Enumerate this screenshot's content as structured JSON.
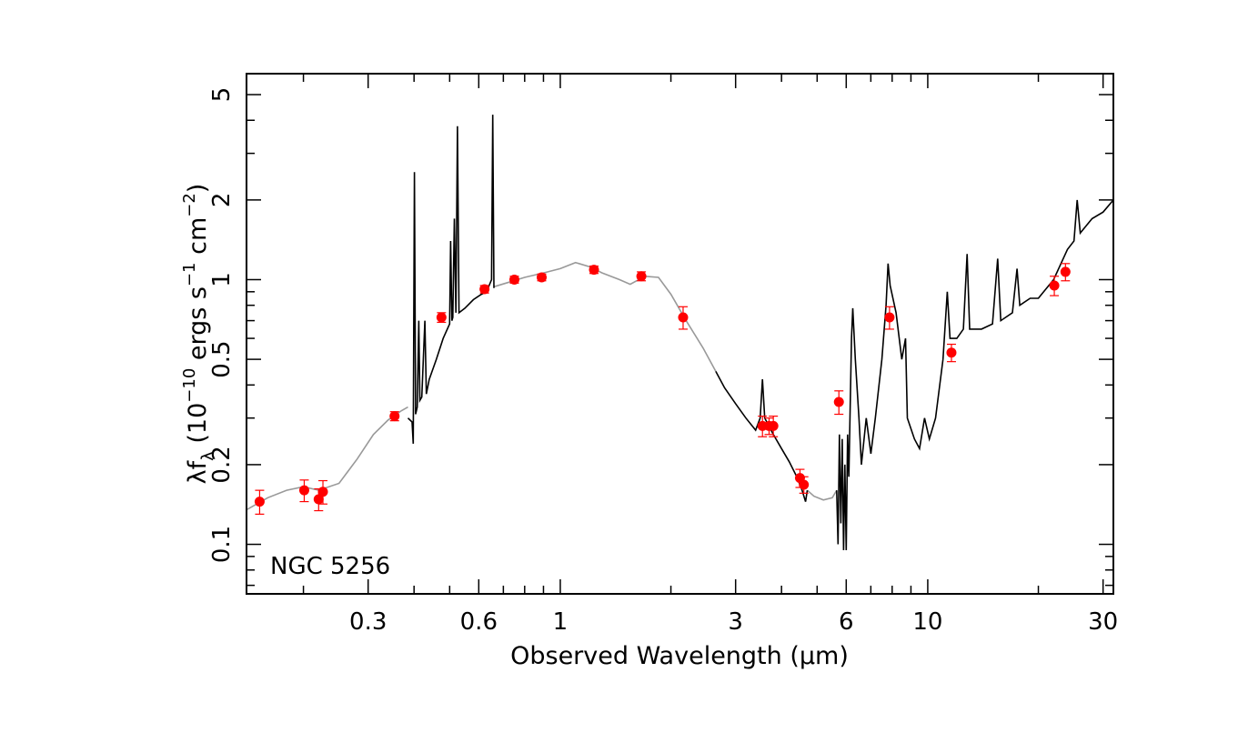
{
  "chart_data": {
    "type": "scatter",
    "xscale": "log",
    "yscale": "log",
    "xlim": [
      0.14,
      32
    ],
    "ylim": [
      0.065,
      6.0
    ],
    "xlabel": "Observed Wavelength (μm)",
    "ylabel": "λf",
    "ylabel_sub": "λ",
    "ylabel_units": " (10",
    "ylabel_exp1": "−10",
    "ylabel_mid": " ergs s",
    "ylabel_exp2": "−1",
    "ylabel_mid2": " cm",
    "ylabel_exp3": "−2",
    "ylabel_end": ")",
    "x_ticks": [
      {
        "value": 0.3,
        "label": "0.3"
      },
      {
        "value": 0.6,
        "label": "0.6"
      },
      {
        "value": 1,
        "label": "1"
      },
      {
        "value": 3,
        "label": "3"
      },
      {
        "value": 6,
        "label": "6"
      },
      {
        "value": 10,
        "label": "10"
      },
      {
        "value": 30,
        "label": "30"
      }
    ],
    "y_ticks": [
      {
        "value": 0.1,
        "label": "0.1"
      },
      {
        "value": 0.2,
        "label": "0.2"
      },
      {
        "value": 0.5,
        "label": "0.5"
      },
      {
        "value": 1,
        "label": "1"
      },
      {
        "value": 2,
        "label": "2"
      },
      {
        "value": 5,
        "label": "5"
      }
    ],
    "annotation": "NGC 5256",
    "colors": {
      "model": "#999999",
      "observed": "#000000",
      "points": "#ff0000"
    },
    "photometry": [
      {
        "x": 0.152,
        "y": 0.145,
        "err": 0.015
      },
      {
        "x": 0.201,
        "y": 0.16,
        "err": 0.015
      },
      {
        "x": 0.22,
        "y": 0.148,
        "err": 0.014
      },
      {
        "x": 0.226,
        "y": 0.158,
        "err": 0.016
      },
      {
        "x": 0.354,
        "y": 0.305,
        "err": 0.012
      },
      {
        "x": 0.475,
        "y": 0.72,
        "err": 0.03
      },
      {
        "x": 0.622,
        "y": 0.92,
        "err": 0.03
      },
      {
        "x": 0.75,
        "y": 1.0,
        "err": 0.03
      },
      {
        "x": 0.89,
        "y": 1.02,
        "err": 0.03
      },
      {
        "x": 1.235,
        "y": 1.09,
        "err": 0.035
      },
      {
        "x": 1.662,
        "y": 1.03,
        "err": 0.04
      },
      {
        "x": 2.159,
        "y": 0.72,
        "err": 0.07
      },
      {
        "x": 3.55,
        "y": 0.28,
        "err": 0.025
      },
      {
        "x": 3.7,
        "y": 0.28,
        "err": 0.02
      },
      {
        "x": 3.8,
        "y": 0.28,
        "err": 0.025
      },
      {
        "x": 4.49,
        "y": 0.178,
        "err": 0.014
      },
      {
        "x": 4.6,
        "y": 0.168,
        "err": 0.012
      },
      {
        "x": 5.73,
        "y": 0.345,
        "err": 0.035
      },
      {
        "x": 7.87,
        "y": 0.72,
        "err": 0.07
      },
      {
        "x": 11.6,
        "y": 0.53,
        "err": 0.04
      },
      {
        "x": 22.1,
        "y": 0.95,
        "err": 0.08
      },
      {
        "x": 23.7,
        "y": 1.07,
        "err": 0.08
      }
    ],
    "model_segments": [
      [
        [
          0.14,
          0.135
        ],
        [
          0.16,
          0.15
        ],
        [
          0.18,
          0.16
        ],
        [
          0.2,
          0.165
        ],
        [
          0.22,
          0.16
        ],
        [
          0.25,
          0.17
        ],
        [
          0.28,
          0.21
        ],
        [
          0.31,
          0.26
        ],
        [
          0.34,
          0.295
        ],
        [
          0.37,
          0.32
        ],
        [
          0.385,
          0.33
        ]
      ],
      [
        [
          0.66,
          0.94
        ],
        [
          0.72,
          0.975
        ],
        [
          0.8,
          1.02
        ],
        [
          0.9,
          1.06
        ],
        [
          1.0,
          1.1
        ],
        [
          1.1,
          1.16
        ],
        [
          1.2,
          1.12
        ],
        [
          1.3,
          1.06
        ],
        [
          1.45,
          1.0
        ],
        [
          1.55,
          0.96
        ],
        [
          1.7,
          1.03
        ],
        [
          1.85,
          1.02
        ],
        [
          2.0,
          0.88
        ],
        [
          2.2,
          0.7
        ],
        [
          2.45,
          0.55
        ],
        [
          2.65,
          0.45
        ]
      ],
      [
        [
          4.7,
          0.16
        ],
        [
          4.9,
          0.152
        ],
        [
          5.2,
          0.147
        ],
        [
          5.5,
          0.15
        ],
        [
          5.65,
          0.16
        ]
      ]
    ],
    "observed_segments": [
      [
        [
          0.385,
          0.3
        ],
        [
          0.395,
          0.29
        ],
        [
          0.398,
          0.24
        ],
        [
          0.401,
          2.55
        ],
        [
          0.404,
          0.31
        ],
        [
          0.408,
          0.33
        ],
        [
          0.412,
          0.7
        ],
        [
          0.415,
          0.35
        ],
        [
          0.42,
          0.36
        ],
        [
          0.428,
          0.7
        ],
        [
          0.432,
          0.37
        ],
        [
          0.44,
          0.42
        ],
        [
          0.46,
          0.5
        ],
        [
          0.48,
          0.6
        ],
        [
          0.5,
          0.68
        ],
        [
          0.503,
          1.4
        ],
        [
          0.507,
          0.7
        ],
        [
          0.51,
          0.72
        ],
        [
          0.515,
          1.7
        ],
        [
          0.52,
          0.75
        ],
        [
          0.525,
          3.8
        ],
        [
          0.53,
          0.75
        ],
        [
          0.55,
          0.78
        ],
        [
          0.58,
          0.84
        ],
        [
          0.61,
          0.88
        ],
        [
          0.63,
          0.9
        ],
        [
          0.65,
          1.0
        ],
        [
          0.655,
          4.2
        ],
        [
          0.66,
          0.93
        ]
      ],
      [
        [
          2.65,
          0.45
        ],
        [
          2.8,
          0.39
        ],
        [
          3.0,
          0.34
        ],
        [
          3.2,
          0.3
        ],
        [
          3.4,
          0.27
        ],
        [
          3.5,
          0.3
        ],
        [
          3.55,
          0.42
        ],
        [
          3.6,
          0.3
        ],
        [
          3.8,
          0.26
        ],
        [
          4.0,
          0.23
        ],
        [
          4.2,
          0.205
        ],
        [
          4.4,
          0.18
        ],
        [
          4.55,
          0.16
        ],
        [
          4.65,
          0.145
        ],
        [
          4.7,
          0.16
        ]
      ],
      [
        [
          5.65,
          0.16
        ],
        [
          5.7,
          0.1
        ],
        [
          5.75,
          0.26
        ],
        [
          5.8,
          0.12
        ],
        [
          5.85,
          0.25
        ],
        [
          5.9,
          0.095
        ],
        [
          5.95,
          0.2
        ],
        [
          6.0,
          0.095
        ],
        [
          6.05,
          0.26
        ],
        [
          6.1,
          0.18
        ],
        [
          6.2,
          0.6
        ],
        [
          6.25,
          0.78
        ],
        [
          6.35,
          0.5
        ],
        [
          6.5,
          0.3
        ],
        [
          6.6,
          0.2
        ],
        [
          6.8,
          0.3
        ],
        [
          7.0,
          0.22
        ],
        [
          7.2,
          0.3
        ],
        [
          7.5,
          0.5
        ],
        [
          7.7,
          0.8
        ],
        [
          7.8,
          1.15
        ],
        [
          7.9,
          0.95
        ],
        [
          8.2,
          0.75
        ],
        [
          8.5,
          0.5
        ],
        [
          8.7,
          0.6
        ],
        [
          8.8,
          0.3
        ],
        [
          9.2,
          0.25
        ],
        [
          9.5,
          0.23
        ],
        [
          9.8,
          0.3
        ],
        [
          10.1,
          0.25
        ],
        [
          10.5,
          0.3
        ],
        [
          11.0,
          0.5
        ],
        [
          11.3,
          0.9
        ],
        [
          11.5,
          0.6
        ],
        [
          12.0,
          0.6
        ],
        [
          12.5,
          0.65
        ],
        [
          12.8,
          1.25
        ],
        [
          13.0,
          0.65
        ],
        [
          14.0,
          0.65
        ],
        [
          15.0,
          0.68
        ],
        [
          15.5,
          1.2
        ],
        [
          15.8,
          0.7
        ],
        [
          17.0,
          0.75
        ],
        [
          17.5,
          1.1
        ],
        [
          17.8,
          0.8
        ],
        [
          19.0,
          0.85
        ],
        [
          20.0,
          0.85
        ],
        [
          22.0,
          1.0
        ],
        [
          24.0,
          1.3
        ],
        [
          25.0,
          1.4
        ],
        [
          25.5,
          2.0
        ],
        [
          26.0,
          1.5
        ],
        [
          28.0,
          1.7
        ],
        [
          30.0,
          1.8
        ],
        [
          32.0,
          2.0
        ]
      ]
    ]
  }
}
